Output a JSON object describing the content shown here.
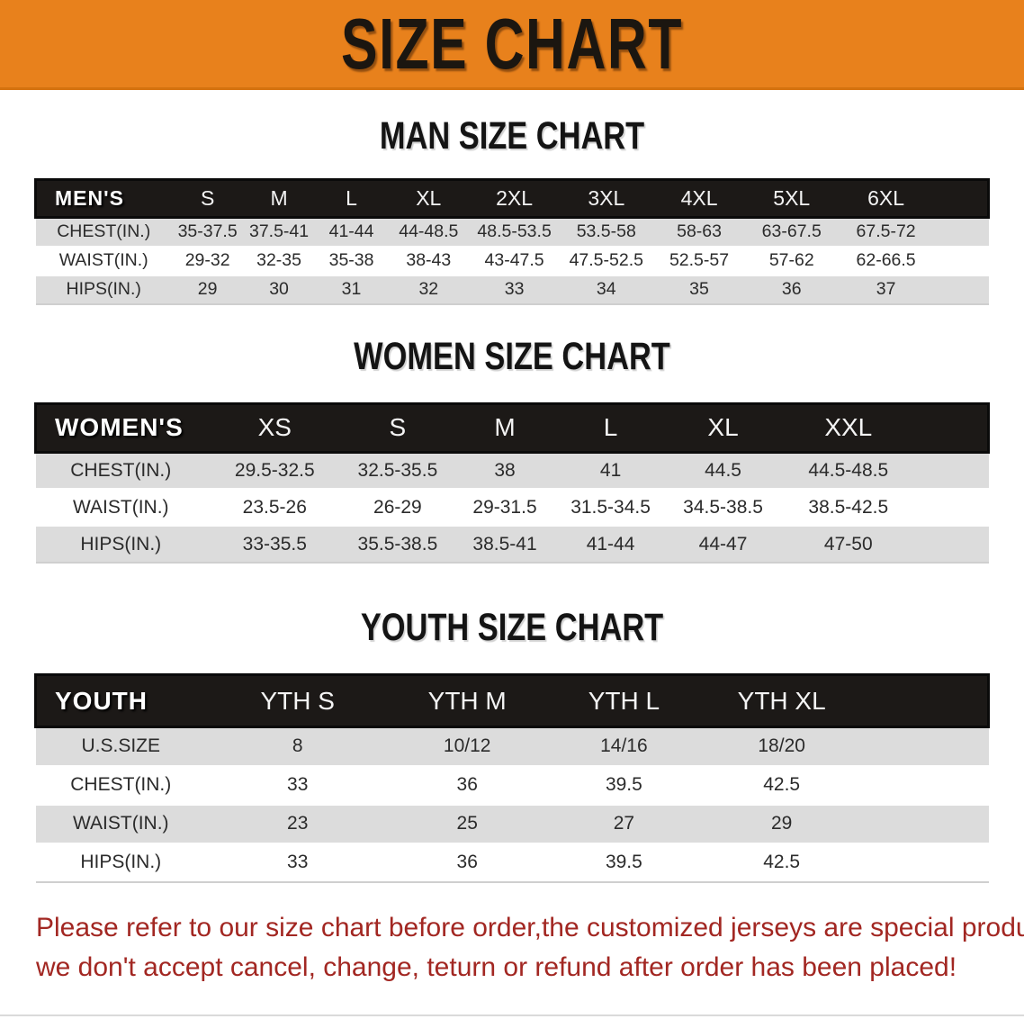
{
  "banner": {
    "title": "SIZE CHART"
  },
  "theme": {
    "banner_bg": "#e8811c",
    "banner_text": "#1b1610",
    "table_header_bg": "#1c1917",
    "table_header_border": "#0a0a0a",
    "table_header_text": "#f4f4f4",
    "row_stripe": "#dcdcdc",
    "body_text": "#222222",
    "disclaimer_color": "#a22722"
  },
  "sections": [
    {
      "id": "mens",
      "title": "MAN SIZE CHART",
      "header_label": "MEN'S",
      "columns": [
        "S",
        "M",
        "L",
        "XL",
        "2XL",
        "3XL",
        "4XL",
        "5XL",
        "6XL"
      ],
      "rows": [
        {
          "label": "CHEST(IN.)",
          "values": [
            "35-37.5",
            "37.5-41",
            "41-44",
            "44-48.5",
            "48.5-53.5",
            "53.5-58",
            "58-63",
            "63-67.5",
            "67.5-72"
          ]
        },
        {
          "label": "WAIST(IN.)",
          "values": [
            "29-32",
            "32-35",
            "35-38",
            "38-43",
            "43-47.5",
            "47.5-52.5",
            "52.5-57",
            "57-62",
            "62-66.5"
          ]
        },
        {
          "label": "HIPS(IN.)",
          "values": [
            "29",
            "30",
            "31",
            "32",
            "33",
            "34",
            "35",
            "36",
            "37"
          ]
        }
      ]
    },
    {
      "id": "womens",
      "title": "WOMEN SIZE CHART",
      "header_label": "WOMEN'S",
      "columns": [
        "XS",
        "S",
        "M",
        "L",
        "XL",
        "XXL"
      ],
      "rows": [
        {
          "label": "CHEST(IN.)",
          "values": [
            "29.5-32.5",
            "32.5-35.5",
            "38",
            "41",
            "44.5",
            "44.5-48.5"
          ]
        },
        {
          "label": "WAIST(IN.)",
          "values": [
            "23.5-26",
            "26-29",
            "29-31.5",
            "31.5-34.5",
            "34.5-38.5",
            "38.5-42.5"
          ]
        },
        {
          "label": "HIPS(IN.)",
          "values": [
            "33-35.5",
            "35.5-38.5",
            "38.5-41",
            "41-44",
            "44-47",
            "47-50"
          ]
        }
      ]
    },
    {
      "id": "youth",
      "title": "YOUTH SIZE CHART",
      "header_label": "YOUTH",
      "columns": [
        "YTH S",
        "YTH M",
        "YTH L",
        "YTH XL"
      ],
      "rows": [
        {
          "label": "U.S.SIZE",
          "values": [
            "8",
            "10/12",
            "14/16",
            "18/20"
          ]
        },
        {
          "label": "CHEST(IN.)",
          "values": [
            "33",
            "36",
            "39.5",
            "42.5"
          ]
        },
        {
          "label": "WAIST(IN.)",
          "values": [
            "23",
            "25",
            "27",
            "29"
          ]
        },
        {
          "label": "HIPS(IN.)",
          "values": [
            "33",
            "36",
            "39.5",
            "42.5"
          ]
        }
      ]
    }
  ],
  "footer": {
    "lines": [
      "Please refer to our size chart before order,the customized jerseys are special products,",
      "we don't accept cancel, change, teturn or refund after order has been placed!"
    ]
  }
}
